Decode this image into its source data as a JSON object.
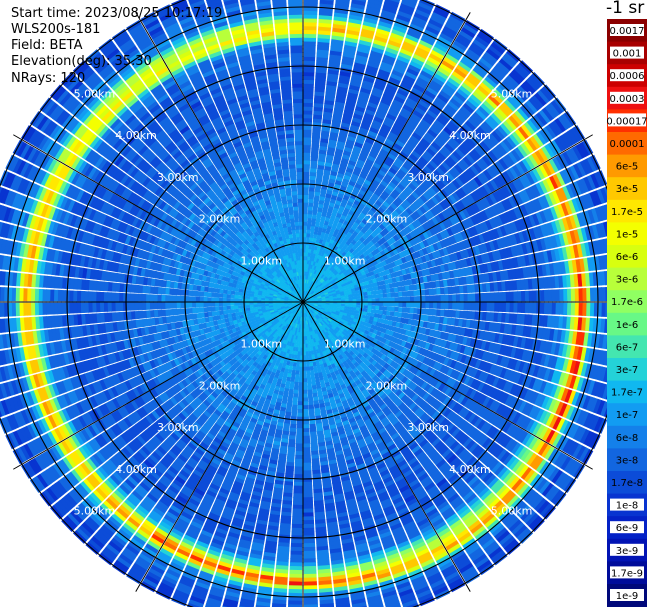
{
  "info": {
    "start_time": "Start time: 2023/08/25 10:17:19",
    "instrument": "WLS200s-181",
    "field": "Field: BETA",
    "elevation": "Elevation(deg): 35.30",
    "nrays": "NRays: 120"
  },
  "colorbar": {
    "unit": "-1 sr",
    "labels": [
      "0.0017",
      "0.001",
      "0.0006",
      "0.0003",
      "0.00017",
      "0.0001",
      "6e-5",
      "3e-5",
      "1.7e-5",
      "1e-5",
      "6e-6",
      "3e-6",
      "1.7e-6",
      "1e-6",
      "6e-7",
      "3e-7",
      "1.7e-7",
      "1e-7",
      "6e-8",
      "3e-8",
      "1.7e-8",
      "1e-8",
      "6e-9",
      "3e-9",
      "1.7e-9",
      "1e-9"
    ],
    "colors": [
      "#8b0000",
      "#a80000",
      "#cc0000",
      "#ee1010",
      "#ff3000",
      "#ff6a00",
      "#ff9a00",
      "#ffc800",
      "#ffe800",
      "#f4ff00",
      "#d8ff10",
      "#b8ff3a",
      "#90ff62",
      "#68f886",
      "#44e6b0",
      "#24d2d8",
      "#10b8f0",
      "#129cf2",
      "#1480ea",
      "#1266e0",
      "#0c4cd8",
      "#0834d0",
      "#0422c6",
      "#0214b4",
      "#000c9a",
      "#00087a"
    ]
  },
  "chart_data": {
    "type": "heatmap",
    "projection": "polar PPI (plan position indicator) scan",
    "field": "BETA",
    "elevation_deg": 35.3,
    "n_rays": 120,
    "range_rings_km": [
      1,
      2,
      3,
      4,
      5
    ],
    "ring_labels": [
      "1.00km",
      "2.00km",
      "3.00km",
      "4.00km",
      "5.00km"
    ],
    "max_range_km": 5.5,
    "radial_profile": {
      "range_km": [
        0.0,
        0.5,
        1.0,
        1.5,
        2.0,
        2.5,
        3.0,
        3.5,
        4.0,
        4.4,
        4.6,
        4.75,
        4.9,
        5.2,
        5.5
      ],
      "beta_sr-1_m-1": [
        1.7e-07,
        1.7e-07,
        1.2e-07,
        1e-07,
        8e-08,
        6e-08,
        4e-08,
        3e-08,
        3e-08,
        6e-08,
        2e-06,
        6e-06,
        1e-07,
        3e-08,
        2e-08
      ]
    },
    "aerosol_layer_ring_km": 4.7,
    "colorbar_range": [
      1e-09,
      0.0017
    ],
    "colorbar_scale": "log"
  }
}
